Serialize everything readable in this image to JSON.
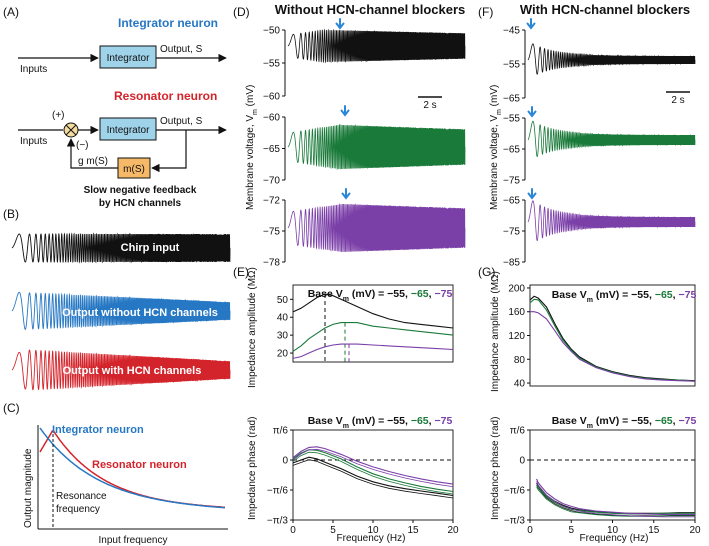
{
  "colors": {
    "black": "#111111",
    "blue": "#2778c4",
    "red": "#d4242b",
    "green": "#1a7a3a",
    "purple": "#7b3fa8",
    "integrator_box": "#9fd3ea",
    "feedback_box": "#f5b968",
    "arrow": "#2a86d6"
  },
  "panels": {
    "A": "(A)",
    "B": "(B)",
    "C": "(C)",
    "D": "(D)",
    "E": "(E)",
    "F": "(F)",
    "G": "(G)"
  },
  "panel_a": {
    "integrator_title": "Integrator neuron",
    "resonator_title": "Resonator neuron",
    "integrator_box": "Integrator",
    "inputs": "Inputs",
    "output": "Output, S",
    "plus": "(+)",
    "minus": "(−)",
    "feedback_gain": "g m(S)",
    "feedback_box": "m(S)",
    "feedback_caption_1": "Slow negative feedback",
    "feedback_caption_2": "by HCN channels"
  },
  "panel_b": {
    "chirp_label": "Chirp input",
    "without_label": "Output without HCN channels",
    "with_label": "Output with HCN channels"
  },
  "panel_c": {
    "integrator_label": "Integrator neuron",
    "resonator_label": "Resonator neuron",
    "resonance_1": "Resonance",
    "resonance_2": "frequency",
    "ylabel": "Output magnitude",
    "xlabel": "Input frequency"
  },
  "panel_d": {
    "title": "Without HCN-channel blockers",
    "ylabel": "Membrane voltage, V",
    "ylabel_sub": "m",
    "ylabel_unit": " (mV)",
    "scale": "2 s",
    "traces": [
      {
        "name": "black",
        "ticks": [
          "-50",
          "-55",
          "-60"
        ]
      },
      {
        "name": "green",
        "ticks": [
          "-60",
          "-65",
          "-70"
        ]
      },
      {
        "name": "purple",
        "ticks": [
          "-72",
          "-75",
          "-78"
        ]
      }
    ]
  },
  "panel_f": {
    "title": "With HCN-channel blockers",
    "ylabel": "Membrane voltage, V",
    "ylabel_sub": "m",
    "ylabel_unit": " (mV)",
    "scale": "2 s",
    "traces": [
      {
        "name": "black",
        "ticks": [
          "-45",
          "-55",
          "-65"
        ]
      },
      {
        "name": "green",
        "ticks": [
          "-55",
          "-65",
          "-75"
        ]
      },
      {
        "name": "purple",
        "ticks": [
          "-65",
          "-75",
          "-85"
        ]
      }
    ]
  },
  "panel_e": {
    "base_prefix": "Base V",
    "base_sub": "m",
    "base_unit": " (mV) = ",
    "base_v1": "−55",
    "base_sep1": ", ",
    "base_v2": "−65",
    "base_sep2": ", ",
    "base_v3": "−75",
    "amp_ylabel": "Impedance amplitude (MΩ)",
    "phase_ylabel": "Impedance phase (rad)",
    "xlabel": "Frequency (Hz)",
    "amp_ticks": [
      "20",
      "30",
      "40",
      "50"
    ],
    "phase_ticks": [
      "π/6",
      "0",
      "−π/6",
      "−π/3"
    ],
    "x_ticks": [
      "0",
      "5",
      "10",
      "15",
      "20"
    ]
  },
  "panel_g": {
    "amp_ylabel": "Impedance amplitude (MΩ)",
    "phase_ylabel": "Impedance phase (rad)",
    "xlabel": "Frequency (Hz)",
    "amp_ticks": [
      "200",
      "160",
      "120",
      "80",
      "40"
    ],
    "phase_ticks": [
      "π/6",
      "0",
      "−π/6",
      "−π/3"
    ],
    "x_ticks": [
      "0",
      "5",
      "10",
      "15",
      "20"
    ]
  },
  "chart_data": [
    {
      "type": "line",
      "title": "(E) Impedance amplitude, without HCN-channel blockers",
      "xlabel": "Frequency (Hz)",
      "ylabel": "Impedance amplitude (MΩ)",
      "xlim": [
        0,
        20
      ],
      "ylim": [
        15,
        58
      ],
      "series": [
        {
          "name": "-55 mV",
          "x": [
            0,
            1,
            2,
            3,
            4,
            5,
            6,
            8,
            10,
            12,
            14,
            16,
            18,
            20
          ],
          "y": [
            43,
            45,
            48,
            51,
            53,
            52,
            50,
            46,
            42,
            39,
            37,
            36,
            35,
            34
          ],
          "peak_hz": 4
        },
        {
          "name": "-65 mV",
          "x": [
            0,
            1,
            2,
            3,
            4,
            5,
            6,
            8,
            10,
            12,
            14,
            16,
            18,
            20
          ],
          "y": [
            21,
            24,
            28,
            31,
            34,
            36,
            37,
            37,
            35,
            34,
            33,
            32,
            31,
            30
          ],
          "peak_hz": 6.5
        },
        {
          "name": "-75 mV",
          "x": [
            0,
            1,
            2,
            3,
            4,
            5,
            6,
            8,
            10,
            12,
            14,
            16,
            18,
            20
          ],
          "y": [
            17,
            18,
            20,
            22,
            23.5,
            24.5,
            25,
            25,
            24.5,
            24,
            23.5,
            23,
            22.5,
            22
          ],
          "peak_hz": 7
        }
      ]
    },
    {
      "type": "line",
      "title": "(E) Impedance phase, without HCN-channel blockers",
      "xlabel": "Frequency (Hz)",
      "ylabel": "Impedance phase (rad)",
      "xlim": [
        0,
        20
      ],
      "ylim": [
        -1.047,
        0.524
      ],
      "series": [
        {
          "name": "-55 mV",
          "x": [
            0,
            1,
            2,
            3,
            4,
            6,
            8,
            10,
            12,
            14,
            16,
            18,
            20
          ],
          "y": [
            -0.05,
            0.0,
            0.05,
            0.02,
            -0.04,
            -0.15,
            -0.28,
            -0.38,
            -0.45,
            -0.5,
            -0.54,
            -0.58,
            -0.62
          ]
        },
        {
          "name": "-65 mV",
          "x": [
            0,
            1,
            2,
            3,
            4,
            6,
            8,
            10,
            12,
            14,
            16,
            18,
            20
          ],
          "y": [
            0.02,
            0.12,
            0.18,
            0.17,
            0.13,
            0.02,
            -0.12,
            -0.24,
            -0.33,
            -0.4,
            -0.46,
            -0.51,
            -0.55
          ]
        },
        {
          "name": "-75 mV",
          "x": [
            0,
            1,
            2,
            3,
            4,
            6,
            8,
            10,
            12,
            14,
            16,
            18,
            20
          ],
          "y": [
            0.04,
            0.15,
            0.22,
            0.23,
            0.2,
            0.1,
            -0.02,
            -0.12,
            -0.2,
            -0.27,
            -0.33,
            -0.38,
            -0.42
          ]
        }
      ]
    },
    {
      "type": "line",
      "title": "(G) Impedance amplitude, with HCN-channel blockers",
      "xlabel": "Frequency (Hz)",
      "ylabel": "Impedance amplitude (MΩ)",
      "xlim": [
        0,
        20
      ],
      "ylim": [
        35,
        205
      ],
      "series": [
        {
          "name": "-55 mV",
          "x": [
            0,
            0.5,
            1,
            2,
            3,
            4,
            5,
            6,
            8,
            10,
            12,
            14,
            16,
            18,
            20
          ],
          "y": [
            180,
            186,
            183,
            168,
            140,
            115,
            97,
            84,
            68,
            59,
            53,
            49,
            47,
            45,
            44
          ]
        },
        {
          "name": "-65 mV",
          "x": [
            0,
            0.5,
            1,
            2,
            3,
            4,
            5,
            6,
            8,
            10,
            12,
            14,
            16,
            18,
            20
          ],
          "y": [
            175,
            181,
            180,
            163,
            136,
            112,
            95,
            82,
            67,
            58,
            52,
            48,
            46,
            45,
            43
          ]
        },
        {
          "name": "-75 mV",
          "x": [
            0,
            0.5,
            1,
            2,
            3,
            4,
            5,
            6,
            8,
            10,
            12,
            14,
            16,
            18,
            20
          ],
          "y": [
            160,
            160,
            158,
            148,
            128,
            108,
            93,
            80,
            66,
            57,
            51,
            47,
            45,
            44,
            43
          ]
        }
      ]
    },
    {
      "type": "line",
      "title": "(G) Impedance phase, with HCN-channel blockers",
      "xlabel": "Frequency (Hz)",
      "ylabel": "Impedance phase (rad)",
      "xlim": [
        0,
        20
      ],
      "ylim": [
        -1.047,
        0.524
      ],
      "series": [
        {
          "name": "-55 mV",
          "x": [
            0.8,
            1,
            2,
            3,
            4,
            5,
            6,
            8,
            10,
            12,
            14,
            16,
            18,
            20
          ],
          "y": [
            -0.4,
            -0.45,
            -0.62,
            -0.72,
            -0.79,
            -0.84,
            -0.87,
            -0.9,
            -0.92,
            -0.93,
            -0.93,
            -0.93,
            -0.92,
            -0.92
          ]
        },
        {
          "name": "-65 mV",
          "x": [
            0.8,
            1,
            2,
            3,
            4,
            5,
            6,
            8,
            10,
            12,
            14,
            16,
            18,
            20
          ],
          "y": [
            -0.43,
            -0.48,
            -0.64,
            -0.74,
            -0.81,
            -0.86,
            -0.88,
            -0.91,
            -0.93,
            -0.94,
            -0.94,
            -0.93,
            -0.93,
            -0.93
          ]
        },
        {
          "name": "-75 mV",
          "x": [
            0.8,
            1,
            2,
            3,
            4,
            5,
            6,
            8,
            10,
            12,
            14,
            16,
            18,
            20
          ],
          "y": [
            -0.33,
            -0.4,
            -0.57,
            -0.68,
            -0.76,
            -0.81,
            -0.85,
            -0.89,
            -0.91,
            -0.93,
            -0.94,
            -0.95,
            -0.95,
            -0.95
          ]
        }
      ]
    },
    {
      "type": "line",
      "title": "(C) Output magnitude vs input frequency",
      "xlabel": "Input frequency",
      "ylabel": "Output magnitude",
      "series": [
        {
          "name": "Integrator neuron",
          "shape": "monotonic decay from maximum at zero frequency"
        },
        {
          "name": "Resonator neuron",
          "shape": "peak at resonance frequency, then decay"
        }
      ]
    }
  ]
}
